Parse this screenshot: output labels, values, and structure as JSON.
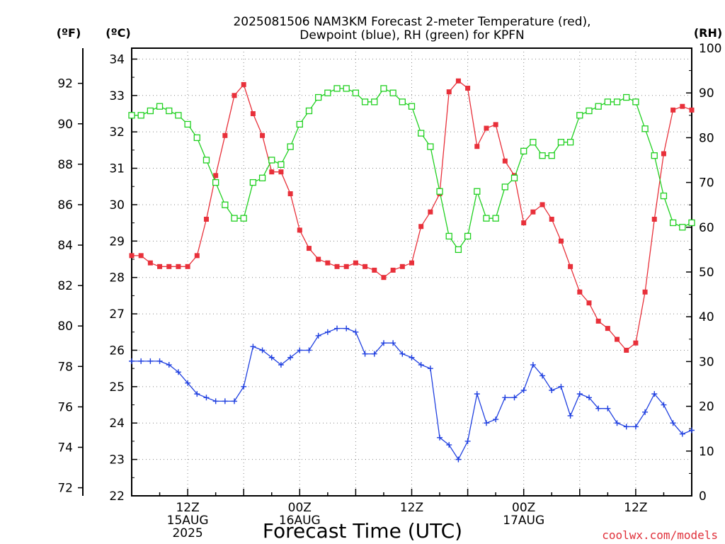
{
  "chart_data": {
    "type": "line",
    "title_line1": "2025081506 NAM3KM Forecast 2-meter Temperature (red),",
    "title_line2": "Dewpoint (blue), RH (green) for KPFN",
    "xlabel": "Forecast Time (UTC)",
    "credit": "coolwx.com/models",
    "units": {
      "f": "(ºF)",
      "c": "(ºC)",
      "rh": "(RH)"
    },
    "x_tick_labels": [
      {
        "h": 6,
        "lines": [
          "12Z",
          "15AUG",
          "2025"
        ]
      },
      {
        "h": 18,
        "lines": [
          "00Z",
          "16AUG"
        ]
      },
      {
        "h": 30,
        "lines": [
          "12Z"
        ]
      },
      {
        "h": 42,
        "lines": [
          "00Z",
          "17AUG"
        ]
      },
      {
        "h": 54,
        "lines": [
          "12Z"
        ]
      }
    ],
    "x_range_hours": [
      0,
      60
    ],
    "y_celsius": {
      "range": [
        22,
        34.3
      ],
      "ticks": [
        22,
        23,
        24,
        25,
        26,
        27,
        28,
        29,
        30,
        31,
        32,
        33,
        34
      ]
    },
    "y_fahrenheit": {
      "ticks": [
        72,
        74,
        76,
        78,
        80,
        82,
        84,
        86,
        88,
        90,
        92
      ]
    },
    "y_rh": {
      "range": [
        0,
        100
      ],
      "ticks": [
        0,
        10,
        20,
        30,
        40,
        50,
        60,
        70,
        80,
        90,
        100
      ]
    },
    "grid": true,
    "colors": {
      "temperature": "#e8303a",
      "dewpoint": "#2040e0",
      "rh": "#20d020",
      "grid": "#888888"
    },
    "series": [
      {
        "key": "temperature",
        "marker": "filled-square",
        "values": [
          28.6,
          28.6,
          28.4,
          28.3,
          28.3,
          28.3,
          28.3,
          28.6,
          29.6,
          30.8,
          31.9,
          33.0,
          33.3,
          32.5,
          31.9,
          30.9,
          30.9,
          30.3,
          29.3,
          28.8,
          28.5,
          28.4,
          28.3,
          28.3,
          28.4,
          28.3,
          28.2,
          28.0,
          28.2,
          28.3,
          28.4,
          29.4,
          29.8,
          30.3,
          33.1,
          33.4,
          33.2,
          31.6,
          32.1,
          32.2,
          31.2,
          30.8,
          29.5,
          29.8,
          30.0,
          29.6,
          29.0,
          28.3,
          27.6,
          27.3,
          26.8,
          26.6,
          26.3,
          26.0,
          26.2,
          27.6,
          29.6,
          31.4,
          32.6,
          32.7,
          32.6
        ]
      },
      {
        "key": "dewpoint",
        "marker": "plus",
        "values": [
          25.7,
          25.7,
          25.7,
          25.7,
          25.6,
          25.4,
          25.1,
          24.8,
          24.7,
          24.6,
          24.6,
          24.6,
          25.0,
          26.1,
          26.0,
          25.8,
          25.6,
          25.8,
          26.0,
          26.0,
          26.4,
          26.5,
          26.6,
          26.6,
          26.5,
          25.9,
          25.9,
          26.2,
          26.2,
          25.9,
          25.8,
          25.6,
          25.5,
          23.6,
          23.4,
          23.0,
          23.5,
          24.8,
          24.0,
          24.1,
          24.7,
          24.7,
          24.9,
          25.6,
          25.3,
          24.9,
          25.0,
          24.2,
          24.8,
          24.7,
          24.4,
          24.4,
          24.0,
          23.9,
          23.9,
          24.3,
          24.8,
          24.5,
          24.0,
          23.7,
          23.8
        ]
      },
      {
        "key": "rh",
        "marker": "open-square",
        "values": [
          85,
          85,
          86,
          87,
          86,
          85,
          83,
          80,
          75,
          70,
          65,
          62,
          62,
          70,
          71,
          75,
          74,
          78,
          83,
          86,
          89,
          90,
          91,
          91,
          90,
          88,
          88,
          91,
          90,
          88,
          87,
          81,
          78,
          68,
          58,
          55,
          58,
          68,
          62,
          62,
          69,
          71,
          77,
          79,
          76,
          76,
          79,
          79,
          85,
          86,
          87,
          88,
          88,
          89,
          88,
          82,
          76,
          67,
          61,
          60,
          61
        ]
      }
    ]
  }
}
